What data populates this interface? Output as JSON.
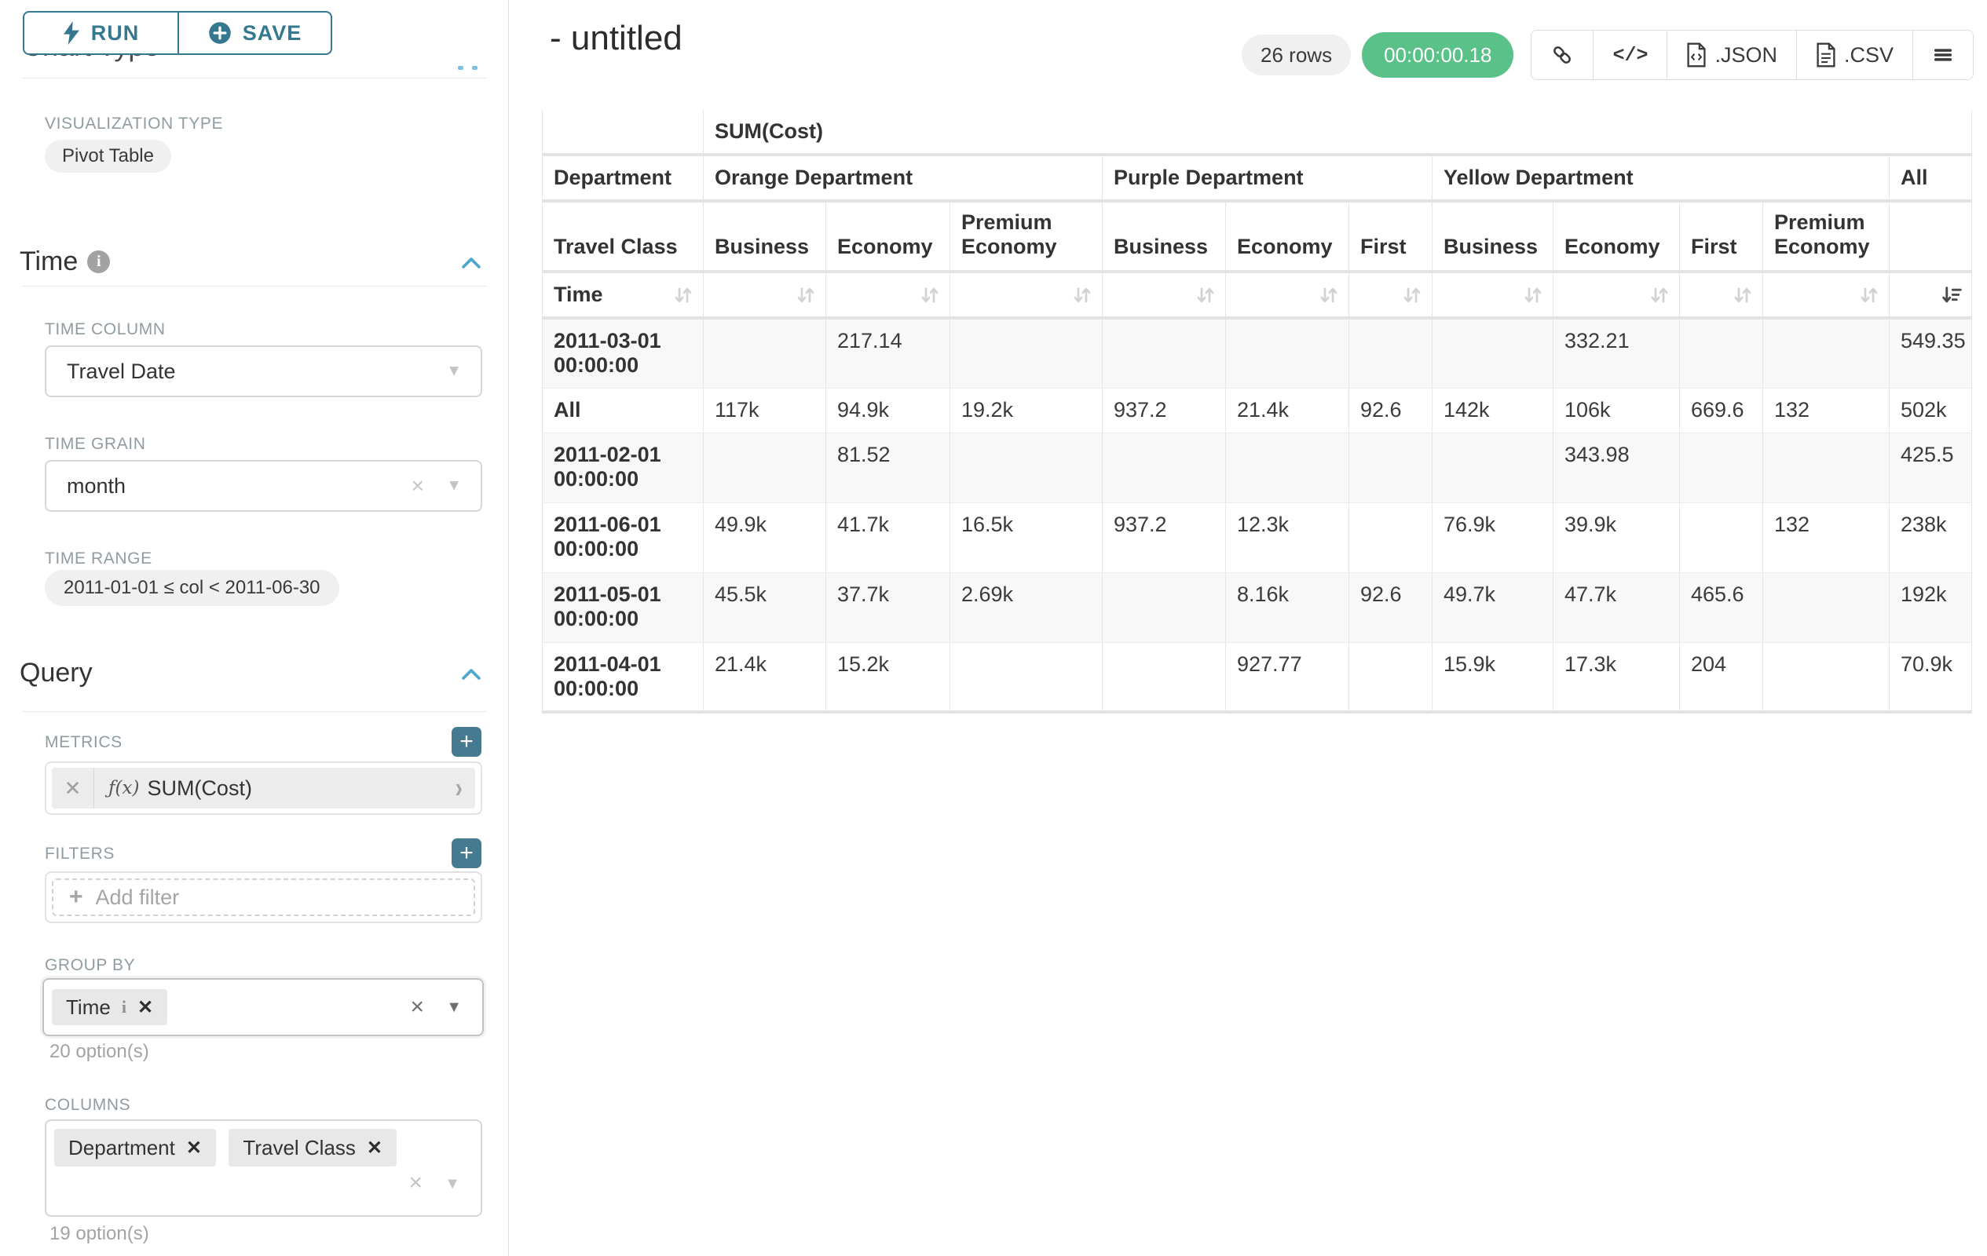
{
  "toolbar": {
    "run_label": "RUN",
    "save_label": "SAVE"
  },
  "sidebar": {
    "clipped_heading": "Chart Type",
    "viz": {
      "label": "VISUALIZATION TYPE",
      "value": "Pivot Table"
    },
    "time": {
      "title": "Time",
      "column_label": "TIME COLUMN",
      "column_value": "Travel Date",
      "grain_label": "TIME GRAIN",
      "grain_value": "month",
      "range_label": "TIME RANGE",
      "range_value": "2011-01-01 ≤ col < 2011-06-30"
    },
    "query": {
      "title": "Query",
      "metrics_label": "METRICS",
      "metric_fx": "ƒ(x)",
      "metric_value": "SUM(Cost)",
      "filters_label": "FILTERS",
      "add_filter_label": "Add filter",
      "groupby_label": "GROUP BY",
      "groupby_value": "Time",
      "groupby_hint": "20 option(s)",
      "columns_label": "COLUMNS",
      "columns_values": [
        "Department",
        "Travel Class"
      ],
      "columns_hint": "19 option(s)"
    }
  },
  "header": {
    "title": "- untitled",
    "rows_badge": "26 rows",
    "timer": "00:00:00.18",
    "json_label": ".JSON",
    "csv_label": ".CSV"
  },
  "colors": {
    "accent": "#36788f",
    "accent_light": "#4da7c9",
    "success": "#5ac189"
  },
  "table": {
    "metric_label": "SUM(Cost)",
    "dept_label": "Department",
    "class_label": "Travel Class",
    "time_label": "Time",
    "departments": [
      {
        "name": "Orange Department",
        "classes": [
          "Business",
          "Economy",
          "Premium Economy"
        ]
      },
      {
        "name": "Purple Department",
        "classes": [
          "Business",
          "Economy",
          "First"
        ]
      },
      {
        "name": "Yellow Department",
        "classes": [
          "Business",
          "Economy",
          "First",
          "Premium Economy"
        ]
      },
      {
        "name": "All",
        "classes": [
          ""
        ]
      }
    ],
    "rows": [
      {
        "label": "2011-03-01 00:00:00",
        "values": [
          "",
          "217.14",
          "",
          "",
          "",
          "",
          "",
          "332.21",
          "",
          "",
          "549.35"
        ]
      },
      {
        "label": "All",
        "values": [
          "117k",
          "94.9k",
          "19.2k",
          "937.2",
          "21.4k",
          "92.6",
          "142k",
          "106k",
          "669.6",
          "132",
          "502k"
        ]
      },
      {
        "label": "2011-02-01 00:00:00",
        "values": [
          "",
          "81.52",
          "",
          "",
          "",
          "",
          "",
          "343.98",
          "",
          "",
          "425.5"
        ]
      },
      {
        "label": "2011-06-01 00:00:00",
        "values": [
          "49.9k",
          "41.7k",
          "16.5k",
          "937.2",
          "12.3k",
          "",
          "76.9k",
          "39.9k",
          "",
          "132",
          "238k"
        ]
      },
      {
        "label": "2011-05-01 00:00:00",
        "values": [
          "45.5k",
          "37.7k",
          "2.69k",
          "",
          "8.16k",
          "92.6",
          "49.7k",
          "47.7k",
          "465.6",
          "",
          "192k"
        ]
      },
      {
        "label": "2011-04-01 00:00:00",
        "values": [
          "21.4k",
          "15.2k",
          "",
          "",
          "927.77",
          "",
          "15.9k",
          "17.3k",
          "204",
          "",
          "70.9k"
        ]
      }
    ]
  }
}
